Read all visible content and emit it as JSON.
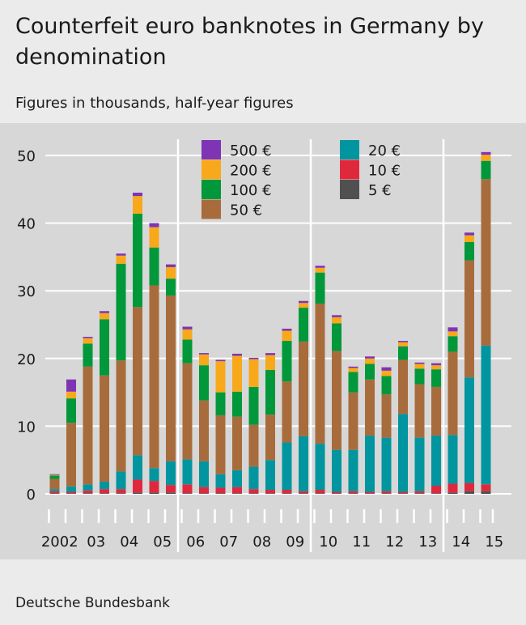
{
  "header": {
    "title": "Counterfeit euro banknotes in Germany by denomination",
    "subtitle": "Figures in thousands, half-year figures"
  },
  "footer": {
    "source": "Deutsche Bundesbank"
  },
  "chart_data": {
    "type": "bar",
    "stacked": true,
    "title": "Counterfeit euro banknotes in Germany by denomination",
    "subtitle": "Figures in thousands, half-year figures",
    "ylim": [
      0,
      50
    ],
    "yticks": [
      0,
      10,
      20,
      30,
      40,
      50
    ],
    "grid": true,
    "year_labels": [
      "2002",
      "03",
      "04",
      "05",
      "06",
      "07",
      "08",
      "09",
      "10",
      "11",
      "12",
      "13",
      "14",
      "15"
    ],
    "periods": [
      "2002 H1",
      "2002 H2",
      "2003 H1",
      "2003 H2",
      "2004 H1",
      "2004 H2",
      "2005 H1",
      "2005 H2",
      "2006 H1",
      "2006 H2",
      "2007 H1",
      "2007 H2",
      "2008 H1",
      "2008 H2",
      "2009 H1",
      "2009 H2",
      "2010 H1",
      "2010 H2",
      "2011 H1",
      "2011 H2",
      "2012 H1",
      "2012 H2",
      "2013 H1",
      "2013 H2",
      "2014 H1",
      "2014 H2",
      "2015 H1"
    ],
    "legend_placement": "top-center",
    "series": [
      {
        "name": "5 €",
        "color": "#505050",
        "values": [
          0.1,
          0.1,
          0.1,
          0.1,
          0.1,
          0.2,
          0.2,
          0.2,
          0.1,
          0.1,
          0.1,
          0.1,
          0.1,
          0.1,
          0.1,
          0.1,
          0.1,
          0.1,
          0.1,
          0.1,
          0.1,
          0.1,
          0.1,
          0.1,
          0.2,
          0.4,
          0.4
        ]
      },
      {
        "name": "10 €",
        "color": "#e0283c",
        "values": [
          0.3,
          0.2,
          0.4,
          0.6,
          0.6,
          1.9,
          1.7,
          1.1,
          1.3,
          0.9,
          0.8,
          0.9,
          0.6,
          0.5,
          0.5,
          0.3,
          0.5,
          0.2,
          0.3,
          0.2,
          0.3,
          0.2,
          0.3,
          1.1,
          1.3,
          1.2,
          1.0
        ]
      },
      {
        "name": "20 €",
        "color": "#00959f",
        "values": [
          0.3,
          0.8,
          0.9,
          1.1,
          2.6,
          3.6,
          1.9,
          3.5,
          3.7,
          3.8,
          2.0,
          2.5,
          3.3,
          4.4,
          7.0,
          8.1,
          6.8,
          6.2,
          6.1,
          8.3,
          7.9,
          11.5,
          7.9,
          7.4,
          7.2,
          15.6,
          20.5
        ]
      },
      {
        "name": "50 €",
        "color": "#a86c3c",
        "values": [
          1.5,
          9.4,
          17.4,
          15.7,
          16.4,
          21.9,
          27.0,
          24.5,
          14.2,
          9.0,
          8.7,
          7.9,
          6.2,
          6.7,
          9.0,
          14.0,
          20.7,
          14.6,
          8.5,
          8.3,
          6.4,
          8.0,
          7.9,
          7.2,
          12.3,
          17.3,
          24.6
        ]
      },
      {
        "name": "100 €",
        "color": "#00983a",
        "values": [
          0.5,
          3.6,
          3.4,
          8.3,
          14.3,
          13.8,
          5.6,
          2.5,
          3.5,
          5.2,
          3.4,
          3.7,
          5.6,
          6.6,
          6.0,
          5.0,
          4.6,
          4.1,
          3.0,
          2.3,
          2.7,
          2.0,
          2.3,
          2.6,
          2.3,
          2.7,
          2.7
        ]
      },
      {
        "name": "200 €",
        "color": "#f7a81b",
        "values": [
          0.1,
          1.0,
          0.8,
          0.9,
          1.2,
          2.6,
          3.0,
          1.7,
          1.5,
          1.6,
          4.6,
          5.3,
          4.1,
          2.2,
          1.5,
          0.7,
          0.7,
          0.9,
          0.6,
          0.8,
          0.8,
          0.6,
          0.7,
          0.6,
          0.7,
          1.0,
          0.9
        ]
      },
      {
        "name": "500 €",
        "color": "#7e34b4",
        "values": [
          0.1,
          1.8,
          0.2,
          0.3,
          0.3,
          0.5,
          0.6,
          0.4,
          0.4,
          0.2,
          0.2,
          0.3,
          0.2,
          0.3,
          0.3,
          0.3,
          0.3,
          0.3,
          0.2,
          0.3,
          0.5,
          0.2,
          0.2,
          0.3,
          0.6,
          0.4,
          0.4
        ]
      }
    ],
    "legend_column_1": [
      "500 €",
      "200 €",
      "100 €",
      "50 €"
    ],
    "legend_column_2": [
      "20 €",
      "10 €",
      "5 €"
    ]
  }
}
